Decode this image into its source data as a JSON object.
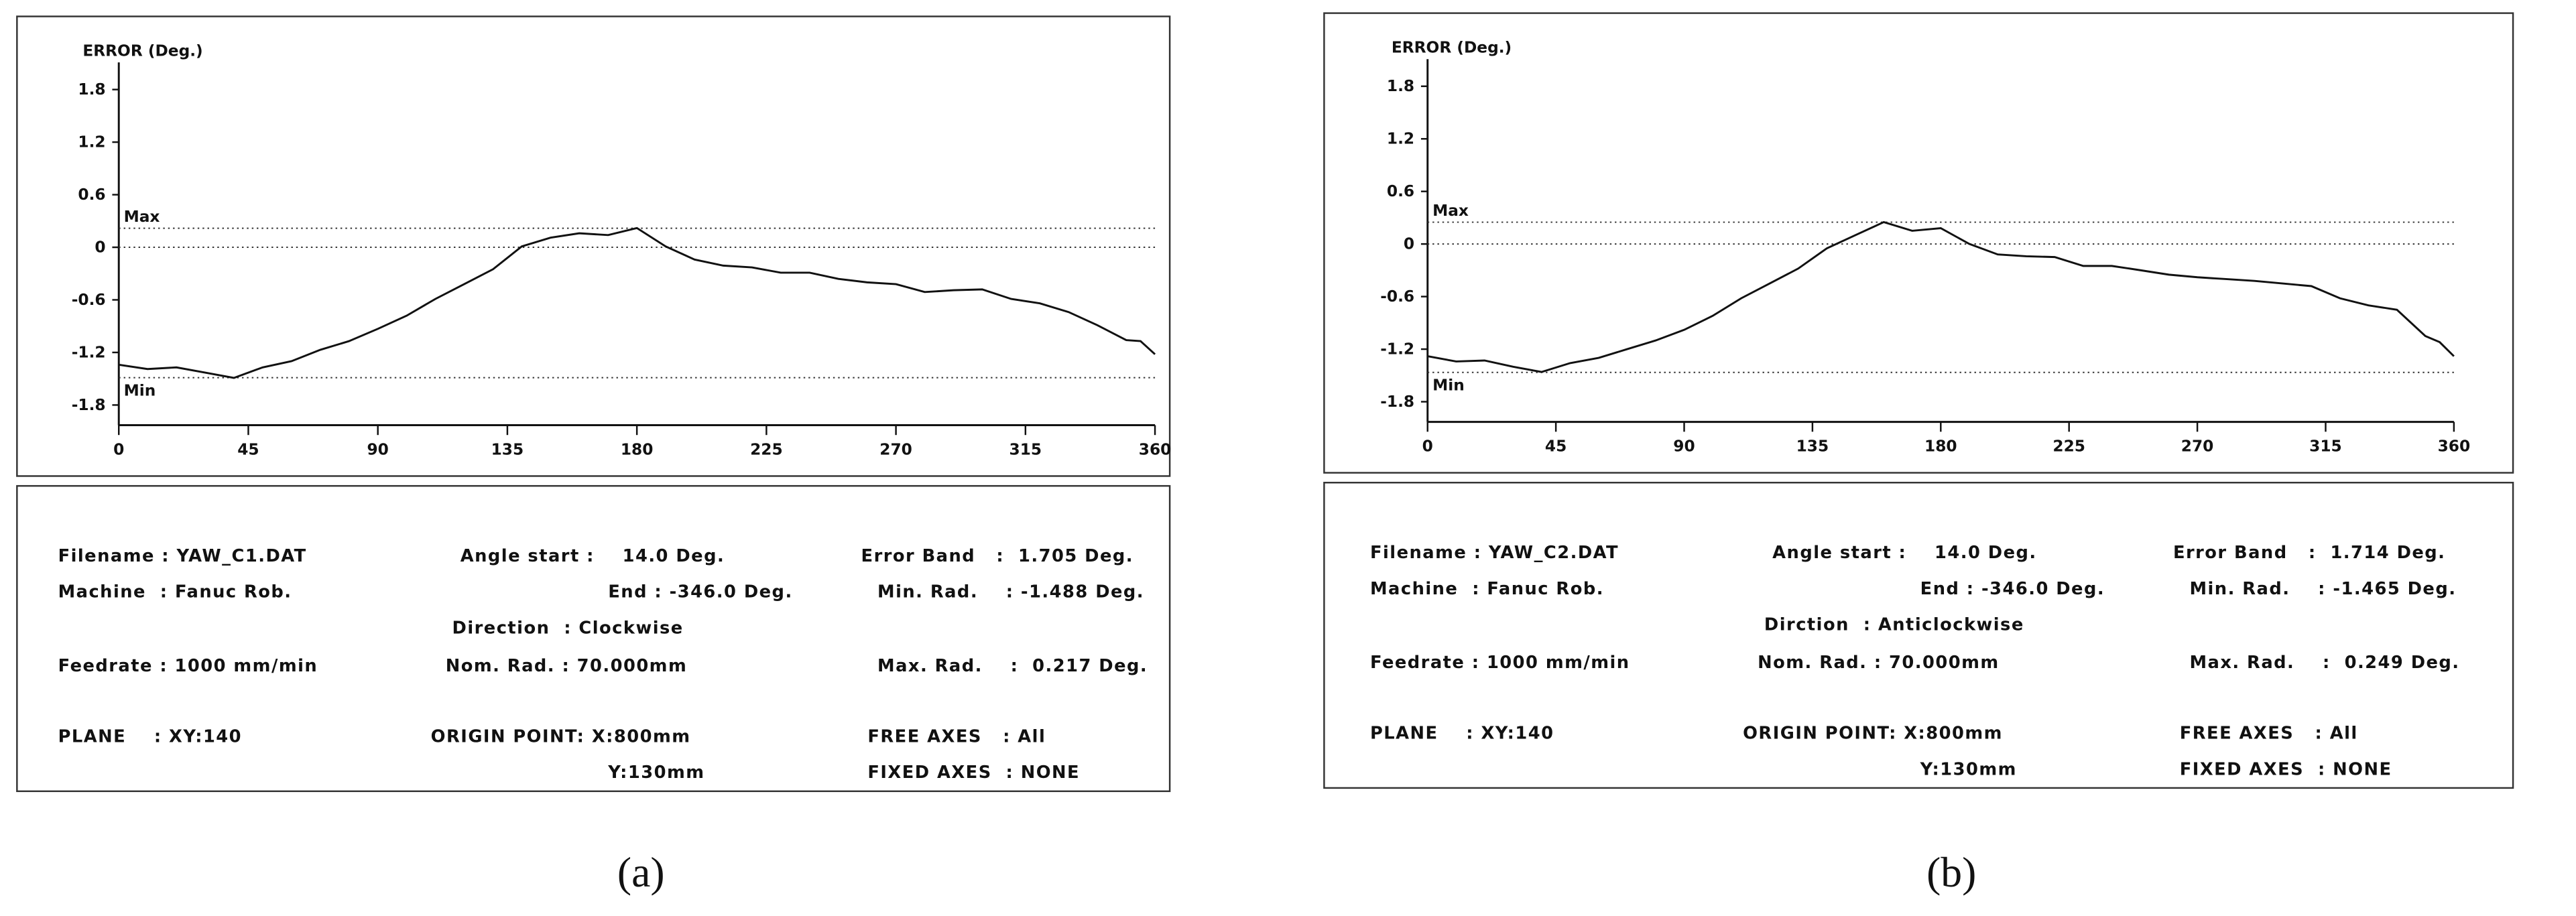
{
  "chart_data": [
    {
      "type": "line",
      "y_label": "ERROR (Deg.)",
      "caption": "(a)",
      "color": "#111111",
      "xlim": [
        0,
        360
      ],
      "xticks": [
        0,
        45,
        90,
        135,
        180,
        225,
        270,
        315,
        360
      ],
      "ylim": [
        -2.03,
        2.11
      ],
      "yticks": [
        1.8,
        1.2,
        0.6,
        0,
        -0.6,
        -1.2,
        -1.8
      ],
      "ref_lines": [
        {
          "label": "Max",
          "value": 0.217
        },
        {
          "label": "Min",
          "value": -1.488
        }
      ],
      "zero_line": true,
      "x": [
        0,
        10,
        20,
        30,
        40,
        50,
        60,
        70,
        80,
        90,
        100,
        110,
        120,
        130,
        140,
        150,
        160,
        170,
        180,
        190,
        200,
        210,
        220,
        230,
        240,
        250,
        260,
        270,
        280,
        290,
        300,
        310,
        320,
        330,
        340,
        350,
        355,
        360
      ],
      "values": [
        -1.34,
        -1.39,
        -1.37,
        -1.43,
        -1.49,
        -1.37,
        -1.3,
        -1.17,
        -1.07,
        -0.93,
        -0.78,
        -0.59,
        -0.42,
        -0.25,
        0.01,
        0.11,
        0.16,
        0.14,
        0.22,
        0.01,
        -0.14,
        -0.21,
        -0.23,
        -0.29,
        -0.29,
        -0.36,
        -0.4,
        -0.42,
        -0.51,
        -0.49,
        -0.48,
        -0.59,
        -0.64,
        -0.74,
        -0.89,
        -1.06,
        -1.07,
        -1.22
      ],
      "info": [
        "Filename : YAW_C1.DAT",
        "Angle start :    14.0 Deg.",
        "Error Band   :  1.705 Deg.",
        "Machine  : Fanuc Rob.",
        "End : -346.0 Deg.",
        "Min. Rad.    : -1.488 Deg.",
        "Direction  : Clockwise",
        "Feedrate : 1000 mm/min",
        "Nom. Rad. : 70.000mm",
        "Max. Rad.    :  0.217 Deg.",
        "PLANE    : XY:140",
        "ORIGIN POINT: X:800mm",
        "FREE AXES   : All",
        "Y:130mm",
        "FIXED AXES  : NONE"
      ]
    },
    {
      "type": "line",
      "y_label": "ERROR (Deg.)",
      "caption": "(b)",
      "color": "#111111",
      "xlim": [
        0,
        360
      ],
      "xticks": [
        0,
        45,
        90,
        135,
        180,
        225,
        270,
        315,
        360
      ],
      "ylim": [
        -2.03,
        2.11
      ],
      "yticks": [
        1.8,
        1.2,
        0.6,
        0,
        -0.6,
        -1.2,
        -1.8
      ],
      "ref_lines": [
        {
          "label": "Max",
          "value": 0.249
        },
        {
          "label": "Min",
          "value": -1.465
        }
      ],
      "zero_line": true,
      "x": [
        0,
        10,
        20,
        30,
        40,
        50,
        60,
        70,
        80,
        90,
        100,
        110,
        120,
        130,
        140,
        150,
        160,
        170,
        180,
        190,
        200,
        210,
        220,
        230,
        240,
        250,
        260,
        270,
        280,
        290,
        300,
        310,
        320,
        330,
        340,
        350,
        355,
        360
      ],
      "values": [
        -1.28,
        -1.34,
        -1.33,
        -1.4,
        -1.46,
        -1.36,
        -1.3,
        -1.2,
        -1.1,
        -0.98,
        -0.82,
        -0.62,
        -0.45,
        -0.28,
        -0.05,
        0.1,
        0.25,
        0.15,
        0.18,
        0.0,
        -0.12,
        -0.14,
        -0.15,
        -0.25,
        -0.25,
        -0.3,
        -0.35,
        -0.38,
        -0.4,
        -0.42,
        -0.45,
        -0.48,
        -0.62,
        -0.7,
        -0.75,
        -1.05,
        -1.12,
        -1.28
      ],
      "info": [
        "Filename : YAW_C2.DAT",
        "Angle start :    14.0 Deg.",
        "Error Band   :  1.714 Deg.",
        "Machine  : Fanuc Rob.",
        "End : -346.0 Deg.",
        "Min. Rad.    : -1.465 Deg.",
        "Dirction  : Anticlockwise",
        "Feedrate : 1000 mm/min",
        "Nom. Rad. : 70.000mm",
        "Max. Rad.    :  0.249 Deg.",
        "PLANE    : XY:140",
        "ORIGIN POINT: X:800mm",
        "FREE AXES   : All",
        "Y:130mm",
        "FIXED AXES  : NONE"
      ]
    }
  ]
}
